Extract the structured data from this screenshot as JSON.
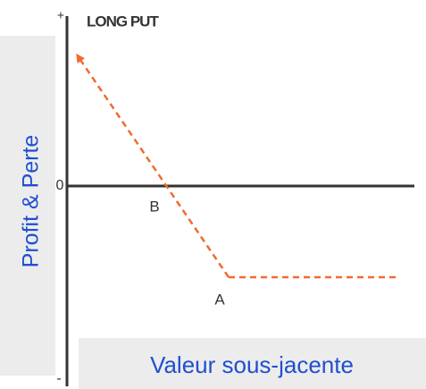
{
  "title": "LONG PUT",
  "axis": {
    "plus": "+",
    "minus": "-",
    "zero": "0"
  },
  "points": {
    "b": "B",
    "a": "A"
  },
  "y_label": "Profit & Perte",
  "x_label": "Valeur sous-jacente"
}
